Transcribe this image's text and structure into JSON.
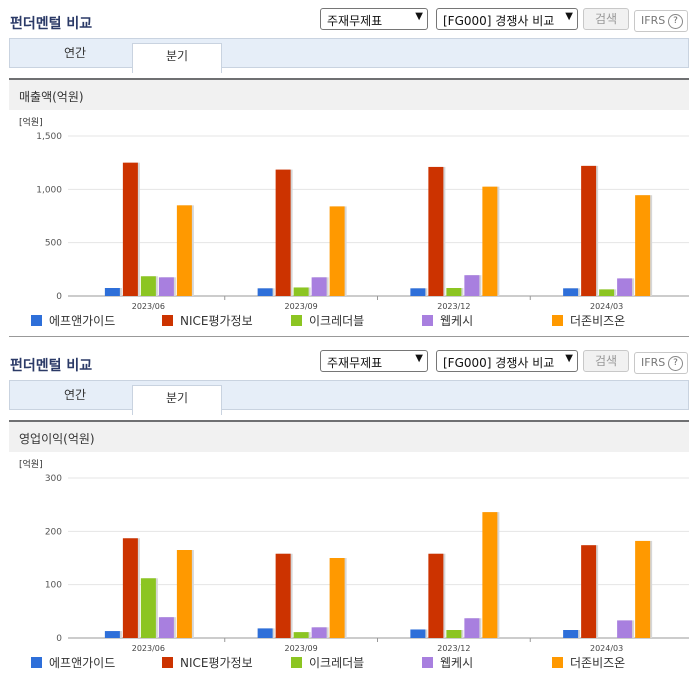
{
  "sections": [
    {
      "title": "펀더멘털 비교",
      "select1": "주재무제표",
      "select2": "[FG000] 경쟁사 비교",
      "search_label": "검색",
      "ifrs_label": "IFRS",
      "tabs": [
        "연간",
        "분기"
      ],
      "active_tab": 1,
      "panel_label": "매출액(억원)",
      "unit_label": "[억원]"
    },
    {
      "title": "펀더멘털 비교",
      "select1": "주재무제표",
      "select2": "[FG000] 경쟁사 비교",
      "search_label": "검색",
      "ifrs_label": "IFRS",
      "tabs": [
        "연간",
        "분기"
      ],
      "active_tab": 1,
      "panel_label": "영업이익(억원)",
      "unit_label": "[억원]"
    }
  ],
  "chart_data": [
    {
      "type": "bar",
      "title": "매출액(억원)",
      "ylabel": "[억원]",
      "ylim": [
        0,
        1500
      ],
      "yticks": [
        0,
        500,
        1000,
        1500
      ],
      "ytick_labels": [
        "0",
        "500",
        "1,000",
        "1,500"
      ],
      "categories": [
        "2023/06",
        "2023/09",
        "2023/12",
        "2024/03"
      ],
      "series": [
        {
          "name": "에프앤가이드",
          "color": "#2e6fd9",
          "values": [
            75,
            72,
            72,
            72
          ]
        },
        {
          "name": "NICE평가정보",
          "color": "#cc3300",
          "values": [
            1250,
            1185,
            1210,
            1220
          ]
        },
        {
          "name": "이크레더블",
          "color": "#8cc522",
          "values": [
            185,
            80,
            75,
            62
          ]
        },
        {
          "name": "웹케시",
          "color": "#a87fdf",
          "values": [
            175,
            175,
            195,
            165
          ]
        },
        {
          "name": "더존비즈온",
          "color": "#ff9900",
          "values": [
            850,
            840,
            1025,
            945
          ]
        }
      ],
      "legend_position": "bottom",
      "grid": true
    },
    {
      "type": "bar",
      "title": "영업이익(억원)",
      "ylabel": "[억원]",
      "ylim": [
        0,
        300
      ],
      "yticks": [
        0,
        100,
        200,
        300
      ],
      "ytick_labels": [
        "0",
        "100",
        "200",
        "300"
      ],
      "categories": [
        "2023/06",
        "2023/09",
        "2023/12",
        "2024/03"
      ],
      "series": [
        {
          "name": "에프앤가이드",
          "color": "#2e6fd9",
          "values": [
            13,
            18,
            16,
            15
          ]
        },
        {
          "name": "NICE평가정보",
          "color": "#cc3300",
          "values": [
            187,
            158,
            158,
            174
          ]
        },
        {
          "name": "이크레더블",
          "color": "#8cc522",
          "values": [
            112,
            11,
            15,
            0
          ]
        },
        {
          "name": "웹케시",
          "color": "#a87fdf",
          "values": [
            39,
            20,
            37,
            33
          ]
        },
        {
          "name": "더존비즈온",
          "color": "#ff9900",
          "values": [
            165,
            150,
            236,
            182
          ]
        }
      ],
      "legend_position": "bottom",
      "grid": true
    }
  ]
}
